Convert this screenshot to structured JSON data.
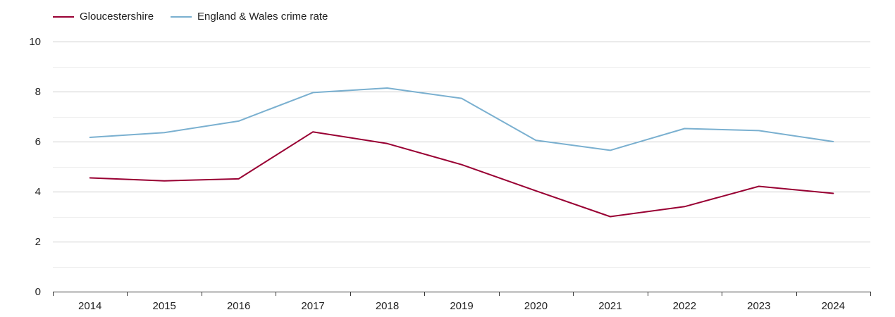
{
  "chart_data": {
    "type": "line",
    "title": "",
    "xlabel": "",
    "ylabel": "",
    "categories": [
      "2014",
      "2015",
      "2016",
      "2017",
      "2018",
      "2019",
      "2020",
      "2021",
      "2022",
      "2023",
      "2024"
    ],
    "series": [
      {
        "name": "Gloucestershire",
        "color": "#990033",
        "values": [
          4.55,
          4.43,
          4.51,
          6.39,
          5.92,
          5.08,
          4.03,
          3.0,
          3.4,
          4.21,
          3.93
        ]
      },
      {
        "name": "England & Wales crime rate",
        "color": "#7ab0d0",
        "values": [
          6.17,
          6.36,
          6.82,
          7.96,
          8.14,
          7.73,
          6.05,
          5.65,
          6.52,
          6.44,
          6.0
        ]
      }
    ],
    "ylim": [
      0,
      10
    ],
    "yticks": [
      "0",
      "2",
      "4",
      "6",
      "8",
      "10"
    ],
    "grid": true,
    "minor_grid": true,
    "legend": "top-left"
  }
}
